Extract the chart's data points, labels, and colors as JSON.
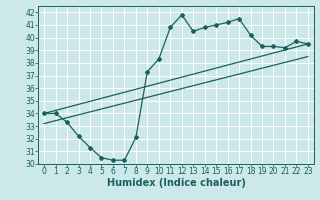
{
  "xlabel": "Humidex (Indice chaleur)",
  "ylabel": "",
  "xlim": [
    -0.5,
    23.5
  ],
  "ylim": [
    30,
    42.5
  ],
  "yticks": [
    30,
    31,
    32,
    33,
    34,
    35,
    36,
    37,
    38,
    39,
    40,
    41,
    42
  ],
  "xticks": [
    0,
    1,
    2,
    3,
    4,
    5,
    6,
    7,
    8,
    9,
    10,
    11,
    12,
    13,
    14,
    15,
    16,
    17,
    18,
    19,
    20,
    21,
    22,
    23
  ],
  "bg_color": "#cce8e8",
  "line_color": "#1a6060",
  "grid_color": "#ffffff",
  "curve1_x": [
    0,
    1,
    2,
    3,
    4,
    5,
    6,
    7,
    8,
    9,
    10,
    11,
    12,
    13,
    14,
    15,
    16,
    17,
    18,
    19,
    20,
    21,
    22,
    23
  ],
  "curve1_y": [
    34.0,
    34.0,
    33.3,
    32.2,
    31.3,
    30.5,
    30.3,
    30.3,
    32.1,
    37.3,
    38.3,
    40.8,
    41.8,
    40.5,
    40.8,
    41.0,
    41.2,
    41.5,
    40.2,
    39.3,
    39.3,
    39.2,
    39.7,
    39.5
  ],
  "curve2_x": [
    0,
    23
  ],
  "curve2_y": [
    34.0,
    39.5
  ],
  "curve3_x": [
    0,
    23
  ],
  "curve3_y": [
    33.2,
    38.5
  ],
  "tick_fontsize": 5.5,
  "xlabel_fontsize": 7
}
